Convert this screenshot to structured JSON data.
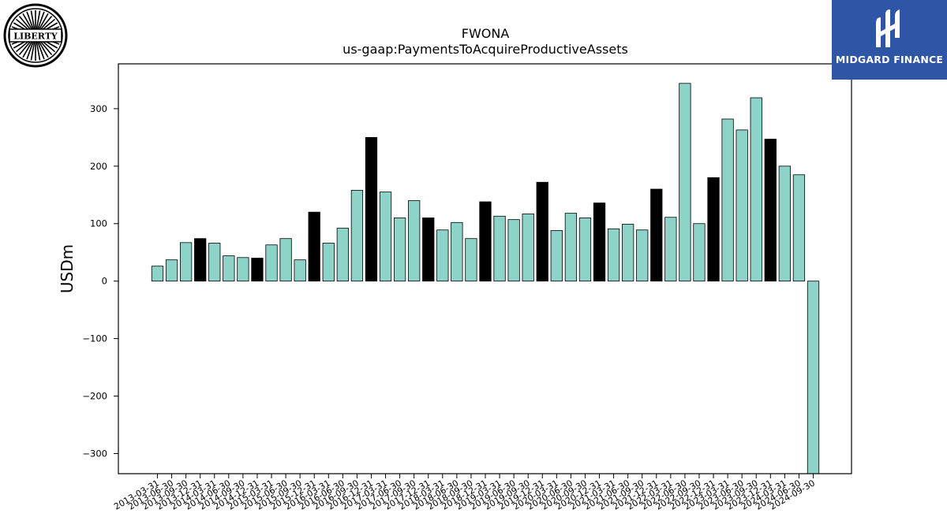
{
  "logos": {
    "left_text": "LIBERTY",
    "right_text": "MIDGARD FINANCE"
  },
  "chart_data": {
    "type": "bar",
    "title": "FWONA",
    "subtitle": "us-gaap:PaymentsToAcquireProductiveAssets",
    "xlabel": "",
    "ylabel": "USDm",
    "ylim": [
      -335,
      378
    ],
    "yticks": [
      -300,
      -200,
      -100,
      0,
      100,
      200,
      300
    ],
    "grid": false,
    "colors": {
      "quarter": "#8dd3c7",
      "annual": "#000000",
      "edge": "#000000"
    },
    "categories": [
      "2013-03-31",
      "2013-06-30",
      "2013-09-30",
      "2013-12-31",
      "2014-03-31",
      "2014-06-30",
      "2014-09-30",
      "2014-12-31",
      "2015-03-31",
      "2015-06-30",
      "2015-09-30",
      "2015-12-31",
      "2016-03-31",
      "2016-06-30",
      "2016-09-30",
      "2016-12-31",
      "2017-03-31",
      "2017-06-30",
      "2017-09-30",
      "2017-12-31",
      "2018-03-31",
      "2018-06-30",
      "2018-09-30",
      "2018-12-31",
      "2019-03-31",
      "2019-06-30",
      "2019-09-30",
      "2019-12-31",
      "2020-03-31",
      "2020-06-30",
      "2020-09-30",
      "2020-12-31",
      "2021-03-31",
      "2021-06-30",
      "2021-09-30",
      "2021-12-31",
      "2022-03-31",
      "2022-06-30",
      "2022-09-30",
      "2022-12-31",
      "2023-03-31",
      "2023-06-30",
      "2023-09-30",
      "2023-12-31",
      "2024-03-31",
      "2024-06-30",
      "2024-09-30"
    ],
    "values": [
      26,
      37,
      67,
      74,
      66,
      44,
      41,
      40,
      63,
      74,
      37,
      120,
      66,
      92,
      158,
      250,
      155,
      110,
      140,
      110,
      89,
      102,
      74,
      138,
      113,
      107,
      117,
      172,
      88,
      118,
      110,
      136,
      91,
      99,
      89,
      160,
      111,
      344,
      100,
      180,
      282,
      263,
      319,
      247,
      200,
      185,
      -335
    ],
    "annual": [
      false,
      false,
      false,
      true,
      false,
      false,
      false,
      true,
      false,
      false,
      false,
      true,
      false,
      false,
      false,
      true,
      false,
      false,
      false,
      true,
      false,
      false,
      false,
      true,
      false,
      false,
      false,
      true,
      false,
      false,
      false,
      true,
      false,
      false,
      false,
      true,
      false,
      false,
      false,
      true,
      false,
      false,
      false,
      true,
      false,
      false,
      false
    ]
  }
}
